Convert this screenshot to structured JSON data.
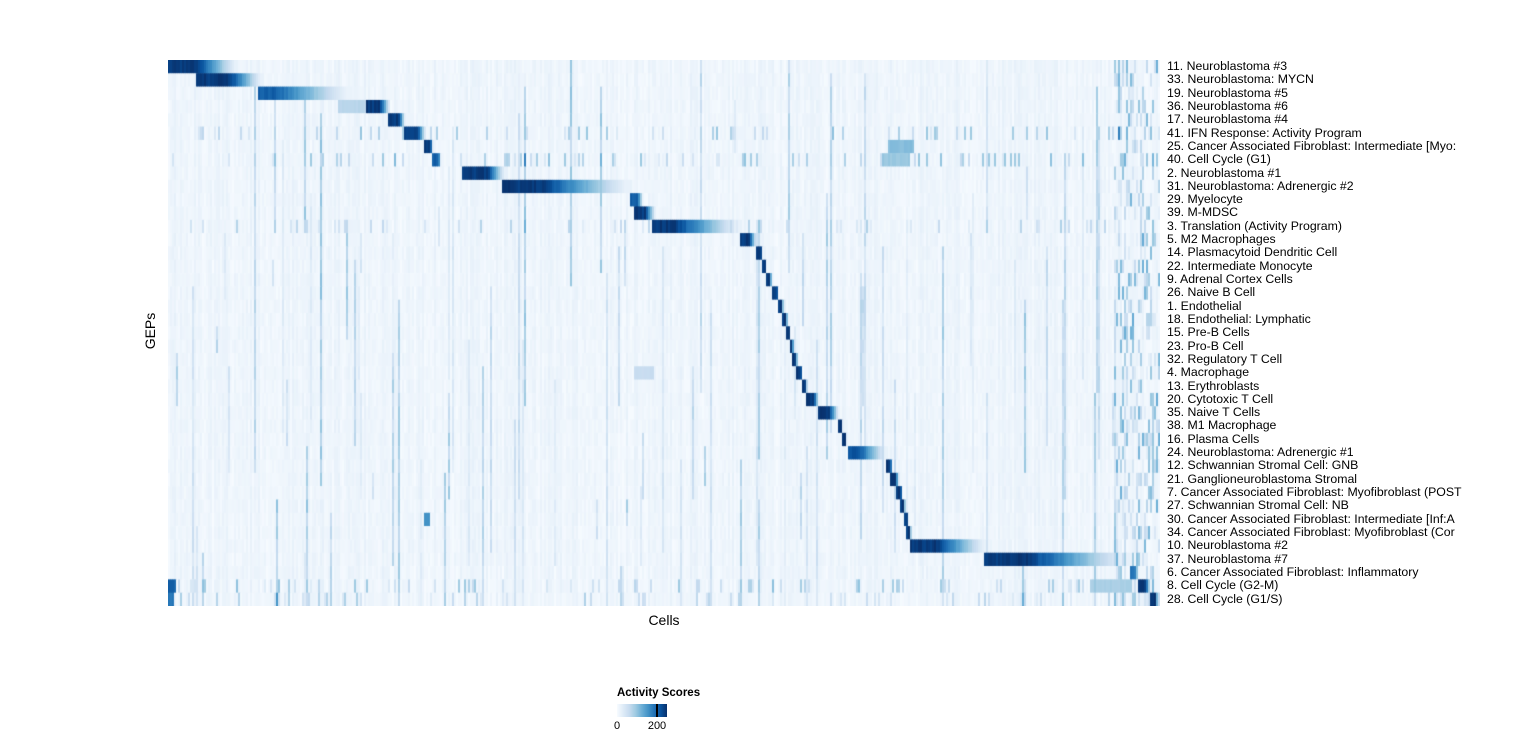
{
  "figure": {
    "background": "#ffffff"
  },
  "legend": {
    "title": "Activity Scores",
    "min_label": "0",
    "max_label": "200",
    "tick_fraction": 0.8
  },
  "chart_data": {
    "type": "heatmap",
    "title": "",
    "xlabel": "Cells",
    "ylabel": "GEPs",
    "value_range": [
      0,
      200
    ],
    "legend_title": "Activity Scores",
    "colormap": [
      "#f7fbff",
      "#deebf7",
      "#c6dbef",
      "#9ecae1",
      "#6baed6",
      "#4292c6",
      "#2171b5",
      "#08519c",
      "#08306b"
    ],
    "description": "GEP activity scores per cell; cells ordered so each GEP's high-activity block forms a diagonal staircase. Block start/end are fractions of the x-axis; peak ~200+ activity.",
    "rows": [
      {
        "label": "11. Neuroblastoma #3",
        "start": 0.0,
        "end": 0.07,
        "core": 0.4,
        "peak": 1
      },
      {
        "label": "33. Neuroblastoma: MYCN",
        "start": 0.028,
        "end": 0.095,
        "core": 0.5,
        "peak": 1
      },
      {
        "label": "19. Neuroblastoma #5",
        "start": 0.089,
        "end": 0.185,
        "core": 0.2,
        "peak": 0.85
      },
      {
        "label": "36. Neuroblastoma #6",
        "start": 0.2,
        "end": 0.224,
        "core": 0.55,
        "peak": 1,
        "extra": [
          [
            0.17,
            0.2,
            0.3
          ]
        ]
      },
      {
        "label": "17. Neuroblastoma #4",
        "start": 0.222,
        "end": 0.239,
        "core": 0.6,
        "peak": 1
      },
      {
        "label": "41. IFN Response: Activity Program",
        "start": 0.238,
        "end": 0.26,
        "core": 0.6,
        "peak": 1,
        "scatter": 0.45
      },
      {
        "label": "25. Cancer Associated Fibroblast: Intermediate [Myo:",
        "start": 0.258,
        "end": 0.267,
        "core": 0.7,
        "peak": 1,
        "extra": [
          [
            0.726,
            0.752,
            0.45
          ]
        ]
      },
      {
        "label": "40. Cell Cycle (G1)",
        "start": 0.266,
        "end": 0.275,
        "core": 0.7,
        "peak": 0.85,
        "scatter": 0.45,
        "extra": [
          [
            0.72,
            0.748,
            0.4
          ]
        ]
      },
      {
        "label": "2. Neuroblastoma #1",
        "start": 0.296,
        "end": 0.34,
        "core": 0.6,
        "peak": 1
      },
      {
        "label": "31. Neuroblastoma: Adrenergic #2",
        "start": 0.337,
        "end": 0.468,
        "core": 0.3,
        "peak": 1
      },
      {
        "label": "29. Myelocyte",
        "start": 0.466,
        "end": 0.479,
        "core": 0.6,
        "peak": 0.85
      },
      {
        "label": "39. M-MDSC",
        "start": 0.47,
        "end": 0.492,
        "core": 0.5,
        "peak": 1
      },
      {
        "label": "3. Translation (Activity Program)",
        "start": 0.488,
        "end": 0.578,
        "core": 0.25,
        "peak": 1,
        "scatter": 0.35
      },
      {
        "label": "5. M2 Macrophages",
        "start": 0.577,
        "end": 0.594,
        "core": 0.55,
        "peak": 1
      },
      {
        "label": "14. Plasmacytoid Dendritic Cell",
        "start": 0.593,
        "end": 0.6,
        "core": 0.7,
        "peak": 1
      },
      {
        "label": "22. Intermediate Monocyte",
        "start": 0.598,
        "end": 0.604,
        "core": 0.7,
        "peak": 1
      },
      {
        "label": "9. Adrenal Cortex Cells",
        "start": 0.603,
        "end": 0.609,
        "core": 0.7,
        "peak": 1
      },
      {
        "label": "26. Naive B Cell",
        "start": 0.609,
        "end": 0.616,
        "core": 0.7,
        "peak": 1
      },
      {
        "label": "1. Endothelial",
        "start": 0.615,
        "end": 0.621,
        "core": 0.7,
        "peak": 1
      },
      {
        "label": "18. Endothelial: Lymphatic",
        "start": 0.62,
        "end": 0.625,
        "core": 0.7,
        "peak": 1
      },
      {
        "label": "15. Pre-B Cells",
        "start": 0.624,
        "end": 0.628,
        "core": 0.7,
        "peak": 1
      },
      {
        "label": "23. Pro-B Cell",
        "start": 0.627,
        "end": 0.631,
        "core": 0.7,
        "peak": 1
      },
      {
        "label": "32. Regulatory T Cell",
        "start": 0.63,
        "end": 0.635,
        "core": 0.7,
        "peak": 1
      },
      {
        "label": "4. Macrophage",
        "start": 0.634,
        "end": 0.64,
        "core": 0.7,
        "peak": 1,
        "extra": [
          [
            0.47,
            0.49,
            0.25
          ]
        ]
      },
      {
        "label": "13. Erythroblasts",
        "start": 0.639,
        "end": 0.645,
        "core": 0.7,
        "peak": 1
      },
      {
        "label": "20. Cytotoxic T Cell",
        "start": 0.643,
        "end": 0.657,
        "core": 0.6,
        "peak": 1
      },
      {
        "label": "35. Naive T Cells",
        "start": 0.655,
        "end": 0.677,
        "core": 0.55,
        "peak": 1
      },
      {
        "label": "38. M1 Macrophage",
        "start": 0.675,
        "end": 0.681,
        "core": 0.7,
        "peak": 1
      },
      {
        "label": "16. Plasma Cells",
        "start": 0.68,
        "end": 0.685,
        "core": 0.7,
        "peak": 1
      },
      {
        "label": "24. Neuroblastoma: Adrenergic #1",
        "start": 0.685,
        "end": 0.726,
        "core": 0.3,
        "peak": 0.9
      },
      {
        "label": "12. Schwannian Stromal Cell: GNB",
        "start": 0.724,
        "end": 0.731,
        "core": 0.7,
        "peak": 1
      },
      {
        "label": "21. Ganglioneuroblastoma Stromal",
        "start": 0.728,
        "end": 0.738,
        "core": 0.6,
        "peak": 1
      },
      {
        "label": "7. Cancer Associated Fibroblast: Myofibroblast (POST",
        "start": 0.735,
        "end": 0.741,
        "core": 0.7,
        "peak": 1
      },
      {
        "label": "27. Schwannian Stromal Cell: NB",
        "start": 0.739,
        "end": 0.744,
        "core": 0.7,
        "peak": 1
      },
      {
        "label": "30. Cancer Associated Fibroblast: Intermediate [Inf:A",
        "start": 0.742,
        "end": 0.747,
        "core": 0.7,
        "peak": 1,
        "extra": [
          [
            0.257,
            0.263,
            0.65
          ]
        ]
      },
      {
        "label": "34. Cancer Associated Fibroblast: Myofibroblast (Cor",
        "start": 0.745,
        "end": 0.75,
        "core": 0.7,
        "peak": 1
      },
      {
        "label": "10. Neuroblastoma #2",
        "start": 0.748,
        "end": 0.827,
        "core": 0.35,
        "peak": 1
      },
      {
        "label": "37. Neuroblastoma #7",
        "start": 0.824,
        "end": 0.972,
        "core": 0.3,
        "peak": 1
      },
      {
        "label": "6. Cancer Associated Fibroblast: Inflammatory",
        "start": 0.97,
        "end": 0.98,
        "core": 0.6,
        "peak": 0.75
      },
      {
        "label": "8. Cell Cycle (G2-M)",
        "start": 0.978,
        "end": 0.992,
        "core": 0.6,
        "peak": 1,
        "scatter": 0.45,
        "extra": [
          [
            0.0,
            0.008,
            0.85
          ],
          [
            0.93,
            0.972,
            0.35
          ]
        ]
      },
      {
        "label": "28. Cell Cycle (G1/S)",
        "start": 0.99,
        "end": 1.0,
        "core": 0.6,
        "peak": 1,
        "scatter": 0.35,
        "extra": [
          [
            0.0,
            0.006,
            0.75
          ]
        ]
      }
    ]
  }
}
